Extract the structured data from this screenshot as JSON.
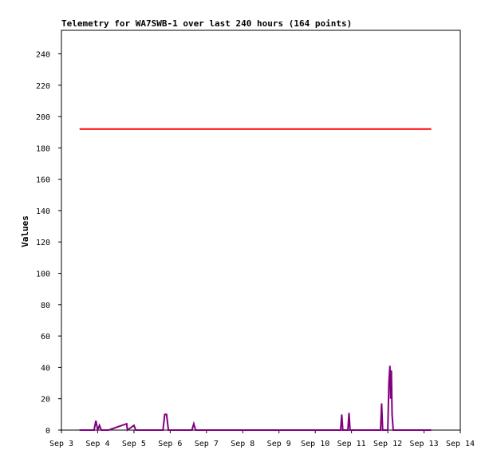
{
  "chart_data": {
    "type": "line",
    "title": "Telemetry for WA7SWB-1 over last 240 hours (164 points)",
    "ylabel": "Values",
    "xlabel": "",
    "ylim": [
      0,
      255
    ],
    "x_tick_labels": [
      "Sep 3",
      "Sep 4",
      "Sep 5",
      "Sep 6",
      "Sep 7",
      "Sep 8",
      "Sep 9",
      "Sep 10",
      "Sep 11",
      "Sep 12",
      "Sep 13",
      "Sep 14"
    ],
    "y_ticks": [
      0,
      20,
      40,
      60,
      80,
      100,
      120,
      140,
      160,
      180,
      200,
      220,
      240
    ],
    "grid": false,
    "series": [
      {
        "color": "#ff0000",
        "x": [
          3.5,
          13.2
        ],
        "values": [
          192,
          192
        ]
      },
      {
        "color": "#800080",
        "x": [
          3.5,
          3.9,
          3.95,
          4.0,
          4.05,
          4.1,
          4.12,
          4.3,
          4.8,
          4.82,
          5.0,
          5.05,
          5.8,
          5.85,
          5.9,
          5.95,
          6.6,
          6.65,
          6.7,
          10.7,
          10.73,
          10.76,
          10.9,
          10.93,
          10.96,
          11.0,
          11.8,
          11.83,
          11.86,
          12.0,
          12.03,
          12.06,
          12.08,
          12.1,
          12.12,
          12.15,
          13.2
        ],
        "values": [
          0,
          0,
          6,
          0,
          3,
          0,
          0,
          0,
          4,
          0,
          3,
          0,
          0,
          10,
          10,
          0,
          0,
          4,
          0,
          0,
          10,
          0,
          0,
          11,
          0,
          0,
          0,
          17,
          0,
          0,
          30,
          41,
          20,
          38,
          10,
          0,
          0
        ]
      }
    ]
  }
}
